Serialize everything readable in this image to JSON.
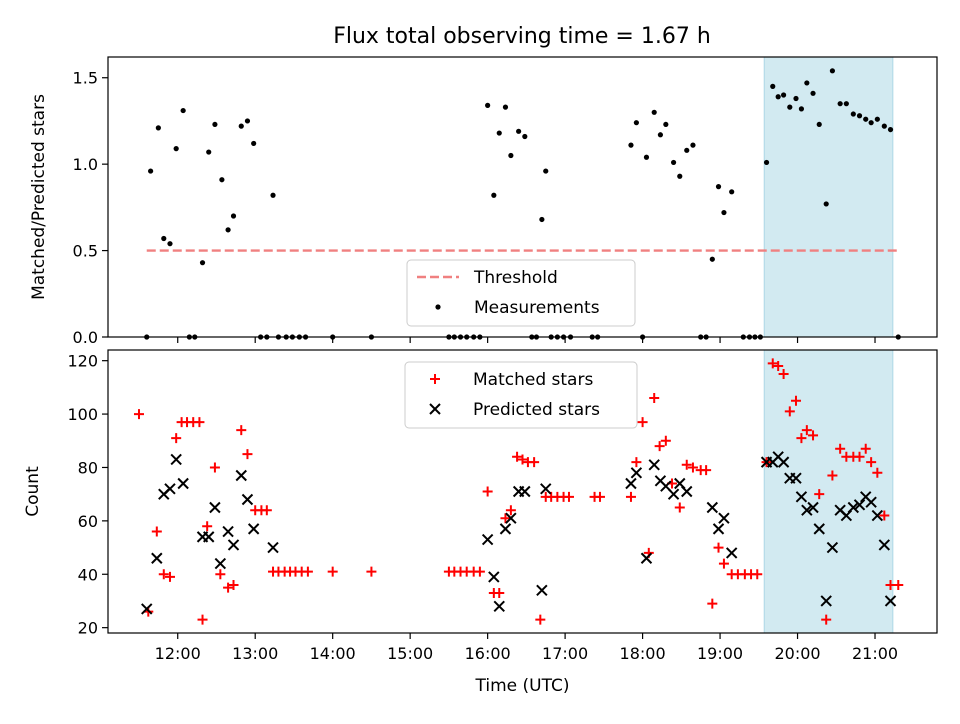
{
  "figure": {
    "title": "Flux total observing time = 1.67 h",
    "xlabel": "Time (UTC)",
    "x_ticks": [
      "12:00",
      "13:00",
      "14:00",
      "15:00",
      "16:00",
      "17:00",
      "18:00",
      "19:00",
      "20:00",
      "21:00"
    ],
    "x_tick_hours": [
      12,
      13,
      14,
      15,
      16,
      17,
      18,
      19,
      20,
      21
    ],
    "x_range_hours": [
      11.1,
      21.8
    ],
    "highlight_span_hours": [
      19.57,
      21.23
    ],
    "highlight_color": "#add8e6"
  },
  "chart_data": [
    {
      "type": "scatter",
      "ylabel": "Matched/Predicted stars",
      "ylim": [
        0,
        1.62
      ],
      "y_ticks": [
        0,
        0.5,
        1.0,
        1.5
      ],
      "y_tick_labels": [
        "0.0",
        "0.5",
        "1.0",
        "1.5"
      ],
      "legend_placement": "lower-center",
      "threshold": {
        "name": "Threshold",
        "y": 0.5,
        "x_range": [
          11.6,
          21.3
        ],
        "color": "#f08080"
      },
      "series": [
        {
          "name": "Measurements",
          "color": "#000000",
          "points": [
            [
              11.6,
              0.0
            ],
            [
              11.65,
              0.96
            ],
            [
              11.75,
              1.21
            ],
            [
              11.82,
              0.57
            ],
            [
              11.9,
              0.54
            ],
            [
              11.98,
              1.09
            ],
            [
              12.07,
              1.31
            ],
            [
              12.15,
              0.0
            ],
            [
              12.22,
              0.0
            ],
            [
              12.32,
              0.43
            ],
            [
              12.4,
              1.07
            ],
            [
              12.48,
              1.23
            ],
            [
              12.57,
              0.91
            ],
            [
              12.65,
              0.62
            ],
            [
              12.72,
              0.7
            ],
            [
              12.82,
              1.22
            ],
            [
              12.9,
              1.25
            ],
            [
              12.98,
              1.12
            ],
            [
              13.07,
              0.0
            ],
            [
              13.15,
              0.0
            ],
            [
              13.23,
              0.82
            ],
            [
              13.3,
              0.0
            ],
            [
              13.4,
              0.0
            ],
            [
              13.48,
              0.0
            ],
            [
              13.57,
              0.0
            ],
            [
              13.65,
              0.0
            ],
            [
              14.0,
              0.0
            ],
            [
              14.5,
              0.0
            ],
            [
              15.5,
              0.0
            ],
            [
              15.57,
              0.0
            ],
            [
              15.65,
              0.0
            ],
            [
              15.73,
              0.0
            ],
            [
              15.82,
              0.0
            ],
            [
              15.9,
              0.0
            ],
            [
              16.0,
              1.34
            ],
            [
              16.08,
              0.82
            ],
            [
              16.15,
              1.18
            ],
            [
              16.23,
              1.33
            ],
            [
              16.3,
              1.05
            ],
            [
              16.4,
              1.19
            ],
            [
              16.48,
              1.16
            ],
            [
              16.57,
              0.0
            ],
            [
              16.63,
              0.0
            ],
            [
              16.7,
              0.68
            ],
            [
              16.75,
              0.96
            ],
            [
              16.82,
              0.0
            ],
            [
              16.9,
              0.0
            ],
            [
              16.98,
              0.0
            ],
            [
              17.07,
              0.0
            ],
            [
              17.35,
              0.0
            ],
            [
              17.42,
              0.0
            ],
            [
              17.85,
              1.11
            ],
            [
              17.92,
              1.24
            ],
            [
              18.0,
              0.0
            ],
            [
              18.05,
              1.04
            ],
            [
              18.15,
              1.3
            ],
            [
              18.23,
              1.17
            ],
            [
              18.3,
              1.23
            ],
            [
              18.4,
              1.01
            ],
            [
              18.48,
              0.93
            ],
            [
              18.57,
              1.08
            ],
            [
              18.65,
              1.11
            ],
            [
              18.75,
              0.0
            ],
            [
              18.82,
              0.0
            ],
            [
              18.9,
              0.45
            ],
            [
              18.98,
              0.87
            ],
            [
              19.05,
              0.72
            ],
            [
              19.15,
              0.84
            ],
            [
              19.3,
              0.0
            ],
            [
              19.38,
              0.0
            ],
            [
              19.45,
              0.0
            ],
            [
              19.52,
              0.0
            ],
            [
              19.6,
              1.01
            ],
            [
              19.68,
              1.45
            ],
            [
              19.75,
              1.39
            ],
            [
              19.82,
              1.4
            ],
            [
              19.9,
              1.33
            ],
            [
              19.98,
              1.38
            ],
            [
              20.05,
              1.32
            ],
            [
              20.12,
              1.47
            ],
            [
              20.2,
              1.41
            ],
            [
              20.28,
              1.23
            ],
            [
              20.37,
              0.77
            ],
            [
              20.45,
              1.54
            ],
            [
              20.55,
              1.35
            ],
            [
              20.63,
              1.35
            ],
            [
              20.72,
              1.29
            ],
            [
              20.8,
              1.28
            ],
            [
              20.88,
              1.26
            ],
            [
              20.95,
              1.24
            ],
            [
              21.03,
              1.26
            ],
            [
              21.12,
              1.22
            ],
            [
              21.2,
              1.2
            ],
            [
              21.3,
              0.0
            ]
          ]
        }
      ]
    },
    {
      "type": "scatter",
      "ylabel": "Count",
      "ylim": [
        18,
        124
      ],
      "y_ticks": [
        20,
        40,
        60,
        80,
        100,
        120
      ],
      "y_tick_labels": [
        "20",
        "40",
        "60",
        "80",
        "100",
        "120"
      ],
      "legend_placement": "upper-center",
      "series": [
        {
          "name": "Matched stars",
          "marker": "plus",
          "color": "#ff0000",
          "points": [
            [
              11.5,
              100
            ],
            [
              11.62,
              26
            ],
            [
              11.73,
              56
            ],
            [
              11.82,
              40
            ],
            [
              11.9,
              39
            ],
            [
              11.98,
              91
            ],
            [
              12.05,
              97
            ],
            [
              12.12,
              97
            ],
            [
              12.2,
              97
            ],
            [
              12.28,
              97
            ],
            [
              12.32,
              23
            ],
            [
              12.38,
              58
            ],
            [
              12.48,
              80
            ],
            [
              12.55,
              40
            ],
            [
              12.65,
              35
            ],
            [
              12.72,
              36
            ],
            [
              12.82,
              94
            ],
            [
              12.9,
              85
            ],
            [
              13.0,
              64
            ],
            [
              13.08,
              64
            ],
            [
              13.15,
              64
            ],
            [
              13.23,
              41
            ],
            [
              13.3,
              41
            ],
            [
              13.38,
              41
            ],
            [
              13.45,
              41
            ],
            [
              13.52,
              41
            ],
            [
              13.6,
              41
            ],
            [
              13.68,
              41
            ],
            [
              14.0,
              41
            ],
            [
              14.5,
              41
            ],
            [
              15.5,
              41
            ],
            [
              15.57,
              41
            ],
            [
              15.65,
              41
            ],
            [
              15.73,
              41
            ],
            [
              15.82,
              41
            ],
            [
              15.9,
              41
            ],
            [
              16.0,
              71
            ],
            [
              16.08,
              33
            ],
            [
              16.15,
              33
            ],
            [
              16.23,
              61
            ],
            [
              16.3,
              64
            ],
            [
              16.38,
              84
            ],
            [
              16.45,
              83
            ],
            [
              16.52,
              82
            ],
            [
              16.6,
              82
            ],
            [
              16.68,
              23
            ],
            [
              16.75,
              69
            ],
            [
              16.82,
              69
            ],
            [
              16.9,
              69
            ],
            [
              16.98,
              69
            ],
            [
              17.05,
              69
            ],
            [
              17.38,
              69
            ],
            [
              17.45,
              69
            ],
            [
              17.85,
              69
            ],
            [
              17.92,
              82
            ],
            [
              18.0,
              97
            ],
            [
              18.08,
              48
            ],
            [
              18.15,
              106
            ],
            [
              18.22,
              88
            ],
            [
              18.3,
              90
            ],
            [
              18.38,
              74
            ],
            [
              18.48,
              65
            ],
            [
              18.57,
              81
            ],
            [
              18.65,
              80
            ],
            [
              18.75,
              79
            ],
            [
              18.82,
              79
            ],
            [
              18.9,
              29
            ],
            [
              18.98,
              50
            ],
            [
              19.05,
              44
            ],
            [
              19.15,
              40
            ],
            [
              19.23,
              40
            ],
            [
              19.32,
              40
            ],
            [
              19.4,
              40
            ],
            [
              19.48,
              40
            ],
            [
              19.6,
              82
            ],
            [
              19.68,
              119
            ],
            [
              19.75,
              118
            ],
            [
              19.82,
              115
            ],
            [
              19.9,
              101
            ],
            [
              19.98,
              105
            ],
            [
              20.05,
              91
            ],
            [
              20.12,
              94
            ],
            [
              20.2,
              92
            ],
            [
              20.28,
              70
            ],
            [
              20.37,
              23
            ],
            [
              20.45,
              77
            ],
            [
              20.55,
              87
            ],
            [
              20.63,
              84
            ],
            [
              20.72,
              84
            ],
            [
              20.8,
              84
            ],
            [
              20.88,
              87
            ],
            [
              20.95,
              82
            ],
            [
              21.03,
              78
            ],
            [
              21.12,
              62
            ],
            [
              21.2,
              36
            ],
            [
              21.3,
              36
            ]
          ]
        },
        {
          "name": "Predicted stars",
          "marker": "x",
          "color": "#000000",
          "points": [
            [
              11.6,
              27
            ],
            [
              11.73,
              46
            ],
            [
              11.82,
              70
            ],
            [
              11.9,
              72
            ],
            [
              11.98,
              83
            ],
            [
              12.07,
              74
            ],
            [
              12.32,
              54
            ],
            [
              12.4,
              54
            ],
            [
              12.48,
              65
            ],
            [
              12.55,
              44
            ],
            [
              12.65,
              56
            ],
            [
              12.72,
              51
            ],
            [
              12.82,
              77
            ],
            [
              12.9,
              68
            ],
            [
              12.98,
              57
            ],
            [
              13.23,
              50
            ],
            [
              16.0,
              53
            ],
            [
              16.08,
              39
            ],
            [
              16.15,
              28
            ],
            [
              16.23,
              57
            ],
            [
              16.3,
              61
            ],
            [
              16.4,
              71
            ],
            [
              16.48,
              71
            ],
            [
              16.7,
              34
            ],
            [
              16.75,
              72
            ],
            [
              17.85,
              74
            ],
            [
              17.92,
              78
            ],
            [
              18.05,
              46
            ],
            [
              18.15,
              81
            ],
            [
              18.23,
              75
            ],
            [
              18.3,
              73
            ],
            [
              18.4,
              70
            ],
            [
              18.48,
              74
            ],
            [
              18.57,
              71
            ],
            [
              18.9,
              65
            ],
            [
              18.98,
              57
            ],
            [
              19.05,
              61
            ],
            [
              19.15,
              48
            ],
            [
              19.6,
              82
            ],
            [
              19.68,
              82
            ],
            [
              19.75,
              84
            ],
            [
              19.82,
              82
            ],
            [
              19.9,
              76
            ],
            [
              19.98,
              76
            ],
            [
              20.05,
              69
            ],
            [
              20.12,
              64
            ],
            [
              20.2,
              65
            ],
            [
              20.28,
              57
            ],
            [
              20.37,
              30
            ],
            [
              20.45,
              50
            ],
            [
              20.55,
              64
            ],
            [
              20.63,
              62
            ],
            [
              20.72,
              65
            ],
            [
              20.8,
              66
            ],
            [
              20.88,
              69
            ],
            [
              20.95,
              67
            ],
            [
              21.03,
              62
            ],
            [
              21.12,
              51
            ],
            [
              21.2,
              30
            ]
          ]
        }
      ]
    }
  ]
}
